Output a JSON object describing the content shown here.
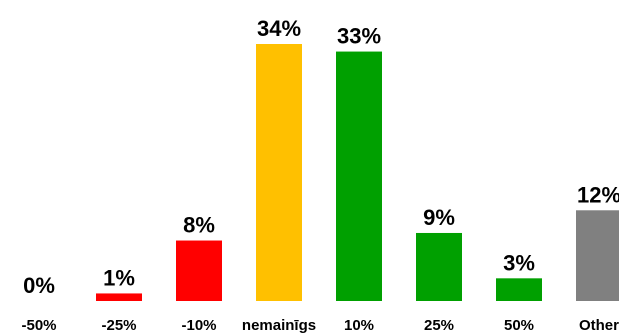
{
  "chart_data": {
    "type": "bar",
    "title": "",
    "xlabel": "",
    "ylabel": "",
    "ylim": [
      0,
      34
    ],
    "grid": false,
    "legend": "none",
    "categories": [
      "-50%",
      "-25%",
      "-10%",
      "nemainīgs",
      "10%",
      "25%",
      "50%",
      "Other"
    ],
    "values": [
      0,
      1,
      8,
      34,
      33,
      9,
      3,
      12
    ],
    "value_labels": [
      "0%",
      "1%",
      "8%",
      "34%",
      "33%",
      "9%",
      "3%",
      "12%"
    ],
    "colors": [
      "#ff0000",
      "#ff0000",
      "#ff0000",
      "#ffc000",
      "#00a000",
      "#00a000",
      "#00a000",
      "#808080"
    ]
  }
}
